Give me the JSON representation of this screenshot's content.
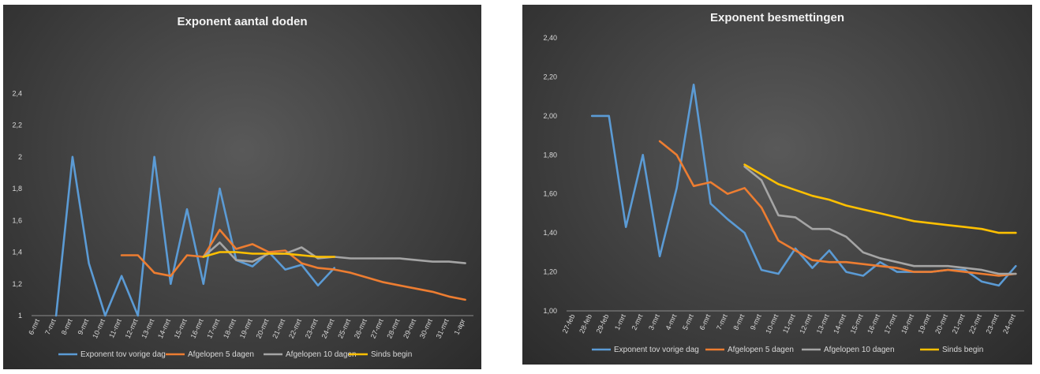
{
  "chart_data": [
    {
      "type": "line",
      "title": "Exponent aantal doden",
      "xlabel": "",
      "ylabel": "",
      "ylim": [
        1,
        2.6
      ],
      "yticks": [
        1,
        1.2,
        1.4,
        1.6,
        1.8,
        2,
        2.2,
        2.4
      ],
      "ytick_labels": [
        "1",
        "1,2",
        "1,4",
        "1,6",
        "1,8",
        "2",
        "2,2",
        "2,4"
      ],
      "categories": [
        "6-mrt",
        "7-mrt",
        "8-mrt",
        "9-mrt",
        "10-mrt",
        "11-mrt",
        "12-mrt",
        "13-mrt",
        "14-mrt",
        "15-mrt",
        "16-mrt",
        "17-mrt",
        "18-mrt",
        "19-mrt",
        "20-mrt",
        "21-mrt",
        "22-mrt",
        "23-mrt",
        "24-mrt",
        "25-mrt",
        "26-mrt",
        "27-mrt",
        "28-mrt",
        "29-mrt",
        "30-mrt",
        "31-mrt",
        "1-apr"
      ],
      "legend_position": "bottom",
      "series": [
        {
          "name": "Exponent tov vorige dag",
          "color": "#5b9bd5",
          "values": [
            null,
            1.0,
            2.0,
            1.33,
            1.0,
            1.25,
            1.0,
            2.0,
            1.2,
            1.67,
            1.2,
            1.8,
            1.35,
            1.31,
            1.4,
            1.29,
            1.32,
            1.19,
            1.3,
            null,
            null,
            null,
            null,
            null,
            null,
            null,
            null
          ]
        },
        {
          "name": "Afgelopen 5 dagen",
          "color": "#ed7d31",
          "values": [
            null,
            null,
            null,
            null,
            null,
            1.38,
            1.38,
            1.27,
            1.25,
            1.38,
            1.37,
            1.54,
            1.42,
            1.45,
            1.4,
            1.41,
            1.33,
            1.3,
            1.29,
            1.27,
            1.24,
            1.21,
            1.19,
            1.17,
            1.15,
            1.12,
            1.1
          ]
        },
        {
          "name": "Afgelopen 10 dagen",
          "color": "#a5a5a5",
          "values": [
            null,
            null,
            null,
            null,
            null,
            null,
            null,
            null,
            null,
            null,
            1.37,
            1.46,
            1.35,
            1.34,
            1.39,
            1.39,
            1.43,
            1.36,
            1.37,
            1.36,
            1.36,
            1.36,
            1.36,
            1.35,
            1.34,
            1.34,
            1.33
          ]
        },
        {
          "name": "Sinds begin",
          "color": "#ffc000",
          "values": [
            null,
            null,
            null,
            null,
            null,
            null,
            null,
            null,
            null,
            null,
            1.37,
            1.4,
            1.4,
            1.39,
            1.39,
            1.39,
            1.38,
            1.37,
            1.37,
            null,
            null,
            null,
            null,
            null,
            null,
            null,
            null
          ]
        }
      ]
    },
    {
      "type": "line",
      "title": "Exponent besmettingen",
      "xlabel": "",
      "ylabel": "",
      "ylim": [
        1,
        2.4
      ],
      "yticks": [
        1,
        1.2,
        1.4,
        1.6,
        1.8,
        2,
        2.2,
        2.4
      ],
      "ytick_labels": [
        "1,00",
        "1,20",
        "1,40",
        "1,60",
        "1,80",
        "2,00",
        "2,20",
        "2,40"
      ],
      "categories": [
        "27-feb",
        "28-feb",
        "29-feb",
        "1-mrt",
        "2-mrt",
        "3-mrt",
        "4-mrt",
        "5-mrt",
        "6-mrt",
        "7-mrt",
        "8-mrt",
        "9-mrt",
        "10-mrt",
        "11-mrt",
        "12-mrt",
        "13-mrt",
        "14-mrt",
        "15-mrt",
        "16-mrt",
        "17-mrt",
        "18-mrt",
        "19-mrt",
        "20-mrt",
        "21-mrt",
        "22-mrt",
        "23-mrt",
        "24-mrt"
      ],
      "legend_position": "bottom",
      "series": [
        {
          "name": "Exponent tov vorige dag",
          "color": "#5b9bd5",
          "values": [
            null,
            2.0,
            2.0,
            1.43,
            1.8,
            1.28,
            1.63,
            2.16,
            1.55,
            1.47,
            1.4,
            1.21,
            1.19,
            1.32,
            1.22,
            1.31,
            1.2,
            1.18,
            1.25,
            1.2,
            1.2,
            1.2,
            1.21,
            1.21,
            1.15,
            1.13,
            1.23
          ]
        },
        {
          "name": "Afgelopen 5 dagen",
          "color": "#ed7d31",
          "values": [
            null,
            null,
            null,
            null,
            null,
            1.87,
            1.8,
            1.64,
            1.66,
            1.6,
            1.63,
            1.53,
            1.36,
            1.31,
            1.26,
            1.25,
            1.25,
            1.24,
            1.23,
            1.22,
            1.2,
            1.2,
            1.21,
            1.2,
            1.19,
            1.18,
            1.19
          ]
        },
        {
          "name": "Afgelopen 10 dagen",
          "color": "#a5a5a5",
          "values": [
            null,
            null,
            null,
            null,
            null,
            null,
            null,
            null,
            null,
            null,
            1.74,
            1.67,
            1.49,
            1.48,
            1.42,
            1.42,
            1.38,
            1.3,
            1.27,
            1.25,
            1.23,
            1.23,
            1.23,
            1.22,
            1.21,
            1.19,
            1.19
          ]
        },
        {
          "name": "Sinds begin",
          "color": "#ffc000",
          "values": [
            null,
            null,
            null,
            null,
            null,
            null,
            null,
            null,
            null,
            null,
            1.75,
            1.7,
            1.65,
            1.62,
            1.59,
            1.57,
            1.54,
            1.52,
            1.5,
            1.48,
            1.46,
            1.45,
            1.44,
            1.43,
            1.42,
            1.4,
            1.4
          ]
        }
      ]
    }
  ]
}
